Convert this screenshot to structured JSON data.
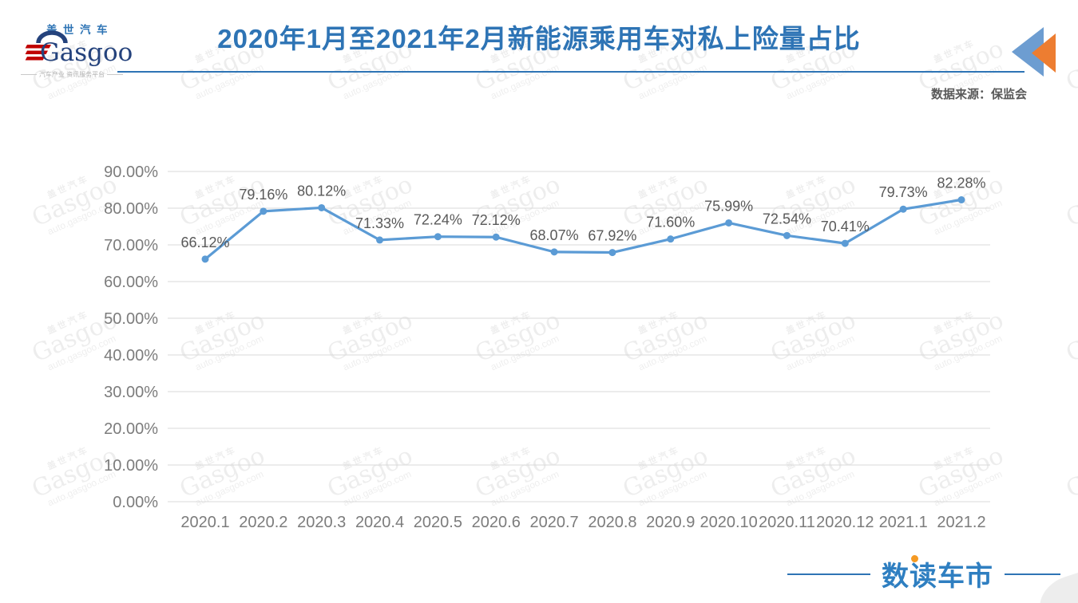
{
  "header": {
    "logo_cn": "盖世汽车",
    "logo_en": "Gasgoo",
    "logo_tagline": "汽车产业 资讯服务平台",
    "title": "2020年1月至2021年2月新能源乘用车对私上险量占比",
    "source_label": "数据来源：保监会"
  },
  "footer": {
    "brand": "数读车市"
  },
  "watermark": {
    "line1": "盖世汽车",
    "line2": "Gasgoo",
    "line3": "auto.gasgoo.com"
  },
  "colors": {
    "title_blue": "#2E74B5",
    "series_blue": "#5B9BD5",
    "triangle_blue": "#6D9DD1",
    "accent_orange": "#ED7D31",
    "brand_dot_orange": "#F59A23",
    "logo_navy": "#24427C",
    "logo_red": "#C00000",
    "brand_blue": "#2F7FC1",
    "grid_gray": "#D9D9D9",
    "tick_gray": "#7C7C7C",
    "label_gray": "#595959"
  },
  "chart_data": {
    "type": "line",
    "title": "2020年1月至2021年2月新能源乘用车对私上险量占比",
    "categories": [
      "2020.1",
      "2020.2",
      "2020.3",
      "2020.4",
      "2020.5",
      "2020.6",
      "2020.7",
      "2020.8",
      "2020.9",
      "2020.10",
      "2020.11",
      "2020.12",
      "2021.1",
      "2021.2"
    ],
    "values": [
      66.12,
      79.16,
      80.12,
      71.33,
      72.24,
      72.12,
      68.07,
      67.92,
      71.6,
      75.99,
      72.54,
      70.41,
      79.73,
      82.28
    ],
    "labels": [
      "66.12%",
      "79.16%",
      "80.12%",
      "71.33%",
      "72.24%",
      "72.12%",
      "68.07%",
      "67.92%",
      "71.60%",
      "75.99%",
      "72.54%",
      "70.41%",
      "79.73%",
      "82.28%"
    ],
    "xlabel": "",
    "ylabel": "",
    "ylim": [
      0,
      90
    ],
    "ytick_step": 10,
    "ytick_suffix": "%",
    "grid": true,
    "legend": "none"
  }
}
